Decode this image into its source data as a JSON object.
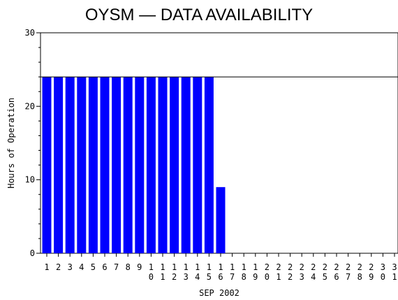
{
  "chart_data": {
    "type": "bar",
    "title": "OYSM — DATA AVAILABILITY",
    "xlabel": "SEP 2002",
    "ylabel": "Hours of Operation",
    "ylim": [
      0,
      30
    ],
    "yticks": [
      "0",
      "10",
      "20",
      "30"
    ],
    "reference_line": 24,
    "bar_color": "#0000ff",
    "categories": [
      "1",
      "2",
      "3",
      "4",
      "5",
      "6",
      "7",
      "8",
      "9",
      "10",
      "11",
      "12",
      "13",
      "14",
      "15",
      "16",
      "17",
      "18",
      "19",
      "20",
      "21",
      "22",
      "23",
      "24",
      "25",
      "26",
      "27",
      "28",
      "29",
      "30",
      "31"
    ],
    "values": [
      24,
      24,
      24,
      24,
      24,
      24,
      24,
      24,
      24,
      24,
      24,
      24,
      24,
      24,
      24,
      9,
      0,
      0,
      0,
      0,
      0,
      0,
      0,
      0,
      0,
      0,
      0,
      0,
      0,
      0,
      0
    ],
    "grid": false
  }
}
